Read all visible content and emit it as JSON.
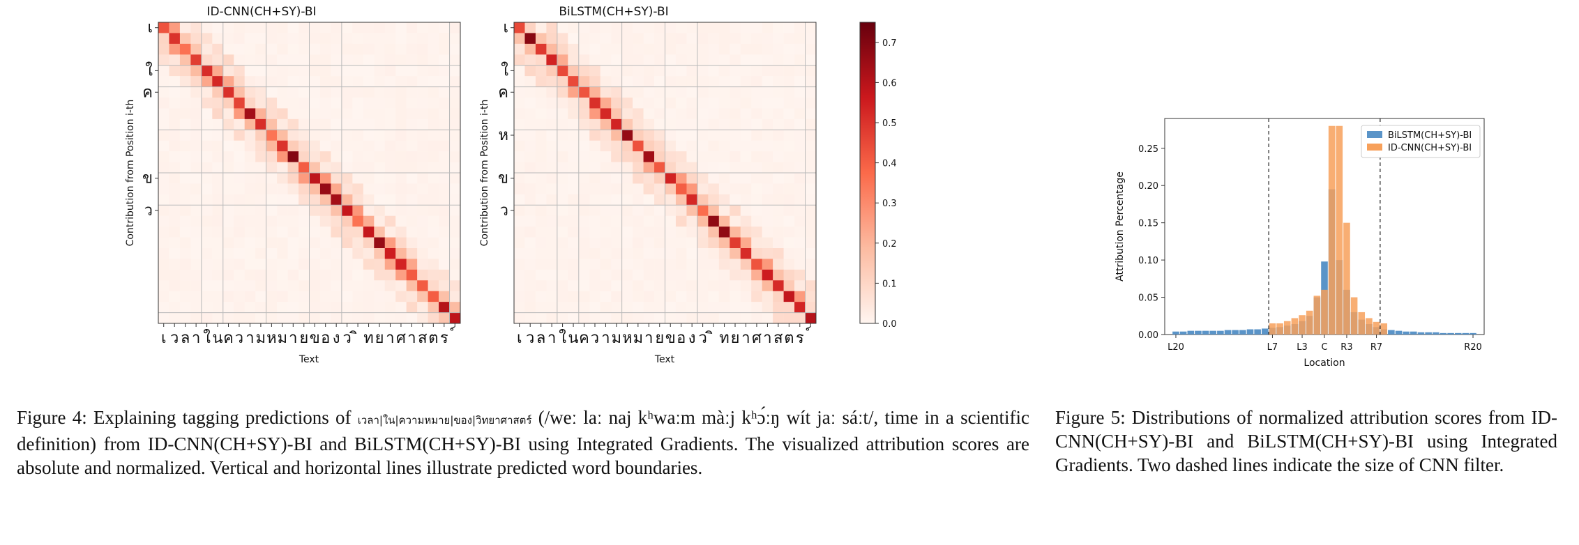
{
  "chart_data": [
    {
      "type": "heatmap",
      "title": "ID-CNN(CH+SY)-BI",
      "xlabel": "Text",
      "ylabel": "Contribution from Position i-th",
      "x_tick_labels": [
        "เ",
        "ว",
        "ล",
        "า",
        "ใ",
        "น",
        "ค",
        "ว",
        "า",
        "ม",
        "ห",
        "ม",
        "า",
        "ย",
        "ข",
        "อ",
        "ง",
        "ว",
        "ิ",
        "ท",
        "ย",
        "า",
        "ศ",
        "า",
        "ส",
        "ต",
        "ร",
        "์"
      ],
      "y_tick_labels": [
        "เ",
        "ใ",
        "ค",
        "ข",
        "ว"
      ],
      "word_boundaries_after": [
        3,
        5,
        9,
        13,
        16,
        26
      ],
      "grid": false,
      "cmap": "Reds",
      "vmin": 0.0,
      "vmax": 0.75
    },
    {
      "type": "heatmap",
      "title": "BiLSTM(CH+SY)-BI",
      "xlabel": "Text",
      "ylabel": "Contribution from Position i-th",
      "x_tick_labels": [
        "เ",
        "ว",
        "ล",
        "า",
        "ใ",
        "น",
        "ค",
        "ว",
        "า",
        "ม",
        "ห",
        "ม",
        "า",
        "ย",
        "ข",
        "อ",
        "ง",
        "ว",
        "ิ",
        "ท",
        "ย",
        "า",
        "ศ",
        "า",
        "ส",
        "ต",
        "ร",
        "์"
      ],
      "y_tick_labels": [
        "เ",
        "ใ",
        "ค",
        "ห",
        "ข",
        "ว"
      ],
      "word_boundaries_after": [
        3,
        5,
        9,
        13,
        16,
        26
      ],
      "grid": false,
      "cmap": "Reds",
      "vmin": 0.0,
      "vmax": 0.75,
      "colorbar_ticks": [
        0.0,
        0.1,
        0.2,
        0.3,
        0.4,
        0.5,
        0.6,
        0.7
      ]
    },
    {
      "type": "bar",
      "title": "",
      "xlabel": "Location",
      "ylabel": "Attribution Percentage",
      "x": [
        -20,
        -19,
        -18,
        -17,
        -16,
        -15,
        -14,
        -13,
        -12,
        -11,
        -10,
        -9,
        -8,
        -7,
        -6,
        -5,
        -4,
        -3,
        -2,
        -1,
        0,
        1,
        2,
        3,
        4,
        5,
        6,
        7,
        8,
        9,
        10,
        11,
        12,
        13,
        14,
        15,
        16,
        17,
        18,
        19,
        20
      ],
      "x_tick_labels": [
        "L20",
        "L7",
        "L3",
        "C",
        "R3",
        "R7",
        "R20"
      ],
      "x_tick_positions": [
        -20,
        -7,
        -3,
        0,
        3,
        7,
        20
      ],
      "ylim": [
        0,
        0.29
      ],
      "y_ticks": [
        0.0,
        0.05,
        0.1,
        0.15,
        0.2,
        0.25
      ],
      "legend": "top-right",
      "dashed_lines_at": [
        -7.5,
        7.5
      ],
      "series": [
        {
          "name": "BiLSTM(CH+SY)-BI",
          "color": "#5a94c8",
          "values": [
            0.004,
            0.004,
            0.005,
            0.005,
            0.005,
            0.005,
            0.005,
            0.006,
            0.006,
            0.006,
            0.007,
            0.007,
            0.008,
            0.009,
            0.01,
            0.012,
            0.014,
            0.018,
            0.025,
            0.05,
            0.098,
            0.195,
            0.1,
            0.06,
            0.03,
            0.02,
            0.014,
            0.01,
            0.007,
            0.006,
            0.005,
            0.004,
            0.004,
            0.003,
            0.003,
            0.003,
            0.002,
            0.002,
            0.002,
            0.002,
            0.002
          ]
        },
        {
          "name": "ID-CNN(CH+SY)-BI",
          "color": "#f7a05a",
          "values": [
            0,
            0,
            0,
            0,
            0,
            0,
            0,
            0,
            0,
            0,
            0,
            0,
            0,
            0.015,
            0.015,
            0.018,
            0.022,
            0.026,
            0.032,
            0.052,
            0.06,
            0.28,
            0.28,
            0.15,
            0.05,
            0.03,
            0.022,
            0.017,
            0.015,
            0,
            0,
            0,
            0,
            0,
            0,
            0,
            0,
            0,
            0,
            0,
            0
          ]
        }
      ]
    }
  ],
  "captions": {
    "fig4_label": "Figure 4:",
    "fig4_text_a": "Explaining tagging predictions of",
    "fig4_thai": "เวลา|ใน|ความหมาย|ของ|วิทยาศาสตร์",
    "fig4_text_b": "(/weː laː naj kʰwaːm màːj kʰɔ́ːŋ wít jaː sáːt/, time in a scientific definition) from ID-CNN(CH+SY)-BI and BiLSTM(CH+SY)-BI using Integrated Gradients. The visualized attribution scores are absolute and normalized. Vertical and horizontal lines illustrate predicted word boundaries.",
    "fig5_label": "Figure 5:",
    "fig5_text": "Distributions of normalized attribution scores from ID-CNN(CH+SY)-BI and BiLSTM(CH+SY)-BI using Integrated Gradients. Two dashed lines indicate the size of CNN filter."
  }
}
